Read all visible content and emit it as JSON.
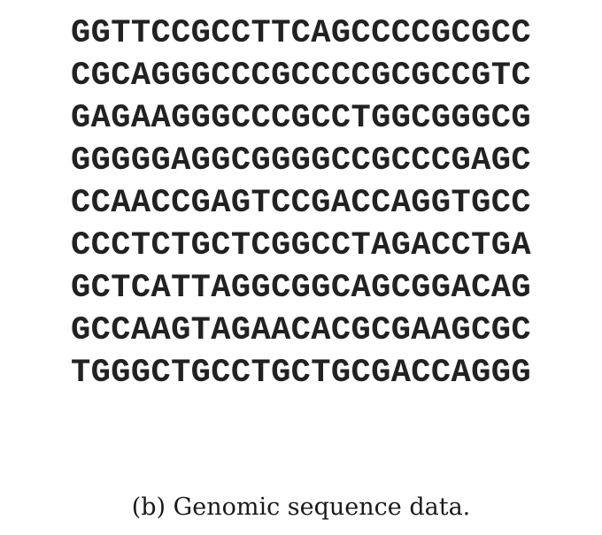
{
  "sequence_lines": [
    "GGTTCCGCCTTCAGCCCCGCGCC",
    "CGCAGGGCCCGCCCCGCGCCGTC",
    "GAGAAGGGCCCGCCTGGCGGGCG",
    "GGGGGAGGCGGGGCCGCCCGAGC",
    "CCAACCGAGTCCGACCAGGTGCC",
    "CCCTCTGCTCGGCCTAGACCTGA",
    "GCTCATTAGGCGGCAGCGGACAG",
    "GCCAAGTAGAACACGCGAAGCGC",
    "TGGGCTGCCTGCTGCGACCAGGG"
  ],
  "caption": "(b) Genomic sequence data."
}
